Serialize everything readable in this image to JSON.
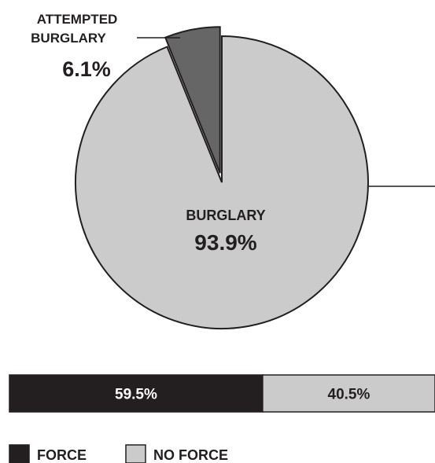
{
  "chart_data": [
    {
      "type": "pie",
      "slices": [
        {
          "label_lines": [
            "BURGLARY"
          ],
          "value": 93.9,
          "value_label": "93.9%",
          "color": "#cbcbcb"
        },
        {
          "label_lines": [
            "ATTEMPTED",
            "BURGLARY"
          ],
          "value": 6.1,
          "value_label": "6.1%",
          "color": "#666666",
          "exploded": true
        }
      ]
    },
    {
      "type": "bar",
      "orientation": "horizontal-stacked",
      "segments": [
        {
          "name": "FORCE",
          "value": 59.5,
          "value_label": "59.5%",
          "color": "#231f20",
          "text_color": "#ffffff"
        },
        {
          "name": "NO FORCE",
          "value": 40.5,
          "value_label": "40.5%",
          "color": "#cbcbcb",
          "text_color": "#231f20"
        }
      ],
      "legend": [
        {
          "label": "FORCE",
          "color": "#231f20"
        },
        {
          "label": "NO FORCE",
          "color": "#cbcbcb"
        }
      ],
      "legend_position": "bottom-left"
    }
  ],
  "colors": {
    "outline": "#231f20",
    "background": "#ffffff"
  }
}
